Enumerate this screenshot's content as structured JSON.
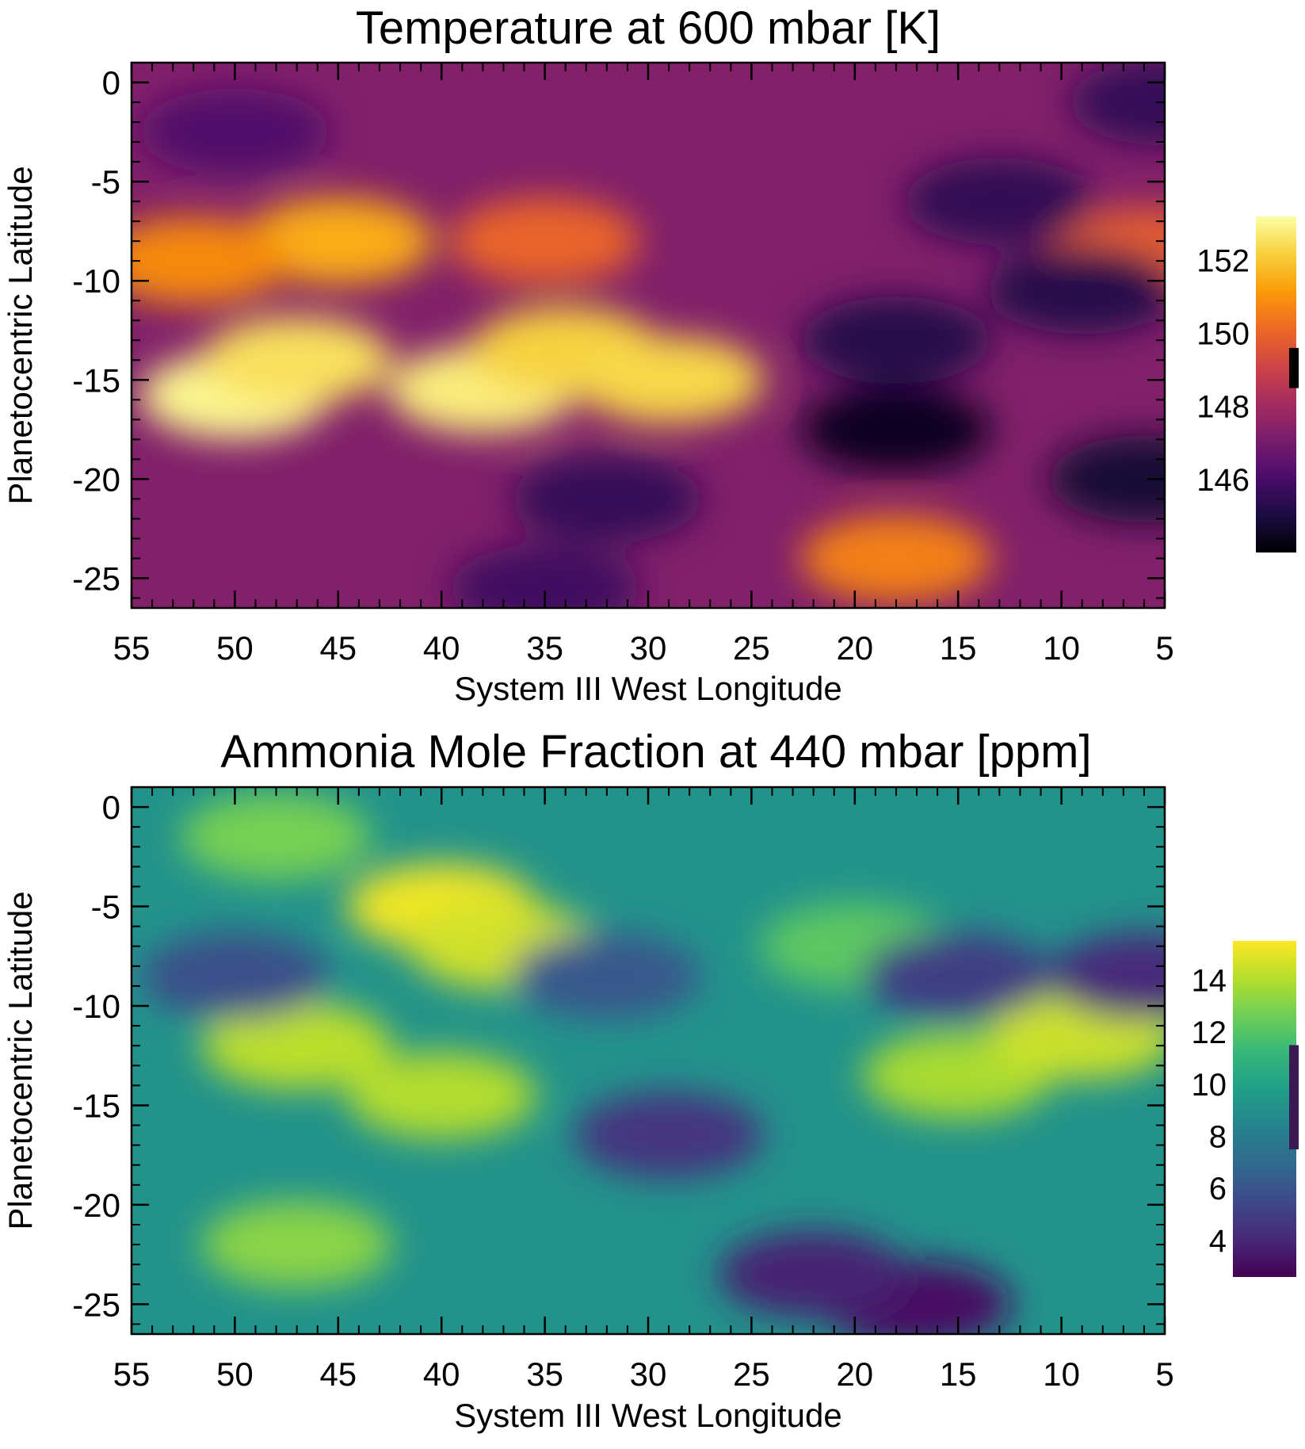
{
  "chart_data": [
    {
      "type": "heatmap",
      "title": "Temperature at 600 mbar [K]",
      "xlabel": "System III West Longitude",
      "ylabel": "Planetocentric Latitude",
      "xlim": [
        55,
        5
      ],
      "ylim": [
        -26.5,
        1
      ],
      "x_ticks": [
        "55",
        "50",
        "45",
        "40",
        "35",
        "30",
        "25",
        "20",
        "15",
        "10",
        "5"
      ],
      "y_ticks": [
        "0",
        "-5",
        "-10",
        "-15",
        "-20",
        "-25"
      ],
      "colorbar": {
        "colormap": "inferno",
        "range": [
          144,
          153.2
        ],
        "ticks": [
          "152",
          "150",
          "148",
          "146"
        ],
        "tick_values": [
          152,
          150,
          148,
          146
        ],
        "marker_range": [
          148.5,
          149.6
        ],
        "marker_color": "#000000"
      },
      "background_value": 147.3,
      "features": [
        {
          "lon": 50,
          "lat": -15.8,
          "value": 153.0
        },
        {
          "lon": 47,
          "lat": -14.0,
          "value": 152.5
        },
        {
          "lon": 38,
          "lat": -15.5,
          "value": 152.8
        },
        {
          "lon": 34,
          "lat": -13.5,
          "value": 152.2
        },
        {
          "lon": 29,
          "lat": -15.0,
          "value": 152.3
        },
        {
          "lon": 45,
          "lat": -8.0,
          "value": 151.5
        },
        {
          "lon": 52,
          "lat": -9.0,
          "value": 150.8
        },
        {
          "lon": 35,
          "lat": -8.0,
          "value": 150.0
        },
        {
          "lon": 18,
          "lat": -24.0,
          "value": 150.6
        },
        {
          "lon": 6,
          "lat": -8.5,
          "value": 149.8
        },
        {
          "lon": 18,
          "lat": -17.5,
          "value": 144.5
        },
        {
          "lon": 18,
          "lat": -13.0,
          "value": 145.3
        },
        {
          "lon": 13,
          "lat": -6.0,
          "value": 145.5
        },
        {
          "lon": 9,
          "lat": -10.5,
          "value": 145.3
        },
        {
          "lon": 6,
          "lat": -20.0,
          "value": 144.8
        },
        {
          "lon": 32,
          "lat": -21.0,
          "value": 145.6
        },
        {
          "lon": 35,
          "lat": -25.5,
          "value": 145.8
        },
        {
          "lon": 50,
          "lat": -2.5,
          "value": 146.2
        },
        {
          "lon": 5,
          "lat": -1.0,
          "value": 145.6
        }
      ]
    },
    {
      "type": "heatmap",
      "title": "Ammonia Mole Fraction at 440 mbar [ppm]",
      "xlabel": "System III West Longitude",
      "ylabel": "Planetocentric Latitude",
      "xlim": [
        55,
        5
      ],
      "ylim": [
        -26.5,
        1
      ],
      "x_ticks": [
        "55",
        "50",
        "45",
        "40",
        "35",
        "30",
        "25",
        "20",
        "15",
        "10",
        "5"
      ],
      "y_ticks": [
        "0",
        "-5",
        "-10",
        "-15",
        "-20",
        "-25"
      ],
      "colorbar": {
        "colormap": "viridis",
        "range": [
          2.6,
          15.5
        ],
        "ticks": [
          "14",
          "12",
          "10",
          "8",
          "6",
          "4"
        ],
        "tick_values": [
          14,
          12,
          10,
          8,
          6,
          4
        ],
        "marker_range": [
          7.5,
          11.5
        ],
        "marker_color": "#3b1a54"
      },
      "background_value": 9.2,
      "features": [
        {
          "lon": 40,
          "lat": -5.0,
          "value": 15.2
        },
        {
          "lon": 37,
          "lat": -7.0,
          "value": 14.6
        },
        {
          "lon": 47,
          "lat": -12.0,
          "value": 14.2
        },
        {
          "lon": 40,
          "lat": -14.5,
          "value": 14.0
        },
        {
          "lon": 15,
          "lat": -13.5,
          "value": 13.8
        },
        {
          "lon": 9,
          "lat": -11.5,
          "value": 14.5
        },
        {
          "lon": 47,
          "lat": -22.0,
          "value": 13.2
        },
        {
          "lon": 48,
          "lat": -1.5,
          "value": 12.8
        },
        {
          "lon": 20,
          "lat": -7.0,
          "value": 12.2
        },
        {
          "lon": 17,
          "lat": -25.0,
          "value": 3.2
        },
        {
          "lon": 22,
          "lat": -23.5,
          "value": 3.8
        },
        {
          "lon": 6,
          "lat": -8.5,
          "value": 4.2
        },
        {
          "lon": 15,
          "lat": -8.5,
          "value": 5.0
        },
        {
          "lon": 29,
          "lat": -16.5,
          "value": 4.6
        },
        {
          "lon": 50,
          "lat": -8.5,
          "value": 5.8
        },
        {
          "lon": 32,
          "lat": -8.5,
          "value": 6.2
        }
      ]
    }
  ]
}
